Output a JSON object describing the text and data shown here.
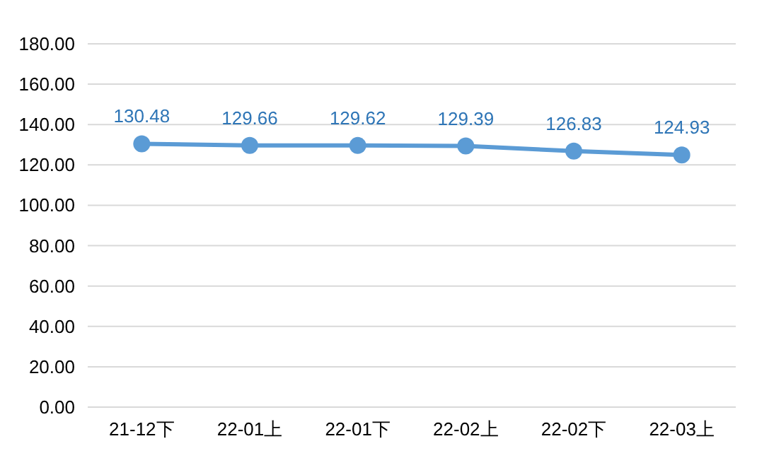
{
  "chart_data": {
    "type": "line",
    "categories": [
      "21-12下",
      "22-01上",
      "22-01下",
      "22-02上",
      "22-02下",
      "22-03上"
    ],
    "series": [
      {
        "color": "#5b9bd5",
        "values": [
          130.48,
          129.66,
          129.62,
          129.39,
          126.83,
          124.93
        ]
      }
    ],
    "ylim": [
      0,
      180
    ],
    "yticks": [
      {
        "value": 0,
        "label": "0.00"
      },
      {
        "value": 20,
        "label": "20.00"
      },
      {
        "value": 40,
        "label": "40.00"
      },
      {
        "value": 60,
        "label": "60.00"
      },
      {
        "value": 80,
        "label": "80.00"
      },
      {
        "value": 100,
        "label": "100.00"
      },
      {
        "value": 120,
        "label": "120.00"
      },
      {
        "value": 140,
        "label": "140.00"
      },
      {
        "value": 160,
        "label": "160.00"
      },
      {
        "value": 180,
        "label": "180.00"
      }
    ],
    "grid": "y",
    "marker": "circle",
    "data_labels": true
  }
}
